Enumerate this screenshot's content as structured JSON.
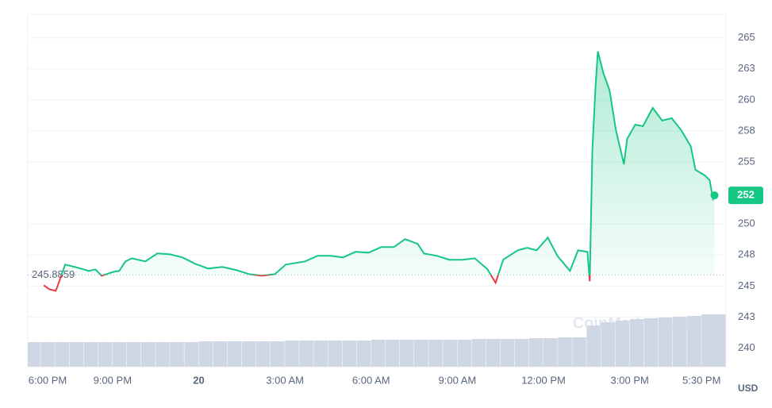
{
  "chart_data": {
    "type": "line",
    "baseline": 245.8859,
    "last_price_label": "252",
    "currency": "USD",
    "watermark": "CoinMarketCap",
    "up_color": "#16c784",
    "down_color": "#ea3943",
    "grid": true,
    "xlim": [
      0.05,
      24.35
    ],
    "ylim": [
      238.5,
      266.9
    ],
    "xticks": [
      {
        "value": 0,
        "label": "6:00 PM"
      },
      {
        "value": 3,
        "label": "9:00 PM"
      },
      {
        "value": 6,
        "label": "20"
      },
      {
        "value": 9,
        "label": "3:00 AM"
      },
      {
        "value": 12,
        "label": "6:00 AM"
      },
      {
        "value": 15,
        "label": "9:00 AM"
      },
      {
        "value": 18,
        "label": "12:00 PM"
      },
      {
        "value": 21,
        "label": "3:00 PM"
      },
      {
        "value": 23.5,
        "label": "5:30 PM"
      }
    ],
    "yticks": [
      240,
      {
        "value": 242.5,
        "label": "243"
      },
      245,
      {
        "value": 247.5,
        "label": "248"
      },
      250,
      255,
      {
        "value": 257.5,
        "label": "258"
      },
      260,
      {
        "value": 262.5,
        "label": "263"
      },
      265
    ],
    "x": [
      0.61,
      0.8,
      1.02,
      1.08,
      1.35,
      1.8,
      2.18,
      2.4,
      2.62,
      3.04,
      3.23,
      3.45,
      3.67,
      4.14,
      4.56,
      5.0,
      5.44,
      5.88,
      6.33,
      6.82,
      7.32,
      7.76,
      8.2,
      8.65,
      9.03,
      9.7,
      10.14,
      10.58,
      11.02,
      11.46,
      11.91,
      12.35,
      12.79,
      13.18,
      13.62,
      13.84,
      14.28,
      14.72,
      15.17,
      15.61,
      16.05,
      16.33,
      16.6,
      17.1,
      17.43,
      17.76,
      18.15,
      18.48,
      18.92,
      19.2,
      19.53,
      19.61,
      19.7,
      19.81,
      19.89,
      20.08,
      20.3,
      20.52,
      20.8,
      20.91,
      21.19,
      21.46,
      21.8,
      22.13,
      22.46,
      22.79,
      23.12,
      23.29,
      23.62,
      23.78,
      23.9,
      23.95
    ],
    "series": [
      {
        "values": [
          245.06,
          244.74,
          244.62,
          244.94,
          246.73,
          246.47,
          246.22,
          246.35,
          245.83,
          246.15,
          246.22,
          246.99,
          247.24,
          246.99,
          247.63,
          247.56,
          247.31,
          246.79,
          246.41,
          246.54,
          246.28,
          245.96,
          245.83,
          245.96,
          246.73,
          246.99,
          247.44,
          247.44,
          247.31,
          247.76,
          247.69,
          248.14,
          248.14,
          248.78,
          248.4,
          247.63,
          247.44,
          247.12,
          247.12,
          247.24,
          246.35,
          245.26,
          247.12,
          247.88,
          248.08,
          247.88,
          248.91,
          247.44,
          246.22,
          247.88,
          247.76,
          245.38,
          255.96,
          261.09,
          263.91,
          262.18,
          260.77,
          257.56,
          254.81,
          256.86,
          258.01,
          257.88,
          259.36,
          258.33,
          258.53,
          257.56,
          256.28,
          254.36,
          253.91,
          253.53,
          251.99,
          252.12
        ]
      }
    ],
    "volume": {
      "color": "#cfd6e4",
      "x": [
        0,
        0.5,
        1,
        1.5,
        2,
        2.5,
        3,
        3.5,
        4,
        4.5,
        5,
        5.5,
        6,
        6.5,
        7,
        7.5,
        8,
        8.5,
        9,
        9.5,
        10,
        10.5,
        11,
        11.5,
        12,
        12.5,
        13,
        13.5,
        14,
        14.5,
        15,
        15.5,
        16,
        16.5,
        17,
        17.5,
        18,
        18.5,
        19,
        19.5,
        20,
        20.5,
        21,
        21.5,
        22,
        22.5,
        23,
        23.5
      ],
      "values": [
        31,
        31,
        31,
        31,
        31,
        31,
        31,
        31,
        31,
        31,
        31,
        31,
        32,
        32,
        32,
        32,
        32,
        32,
        33,
        33,
        33,
        33,
        33,
        33,
        34,
        34,
        34,
        34,
        34,
        34,
        34,
        35,
        35,
        35,
        35,
        36,
        36,
        37,
        37,
        52,
        56,
        58,
        60,
        61,
        62,
        63,
        64,
        66
      ]
    }
  }
}
